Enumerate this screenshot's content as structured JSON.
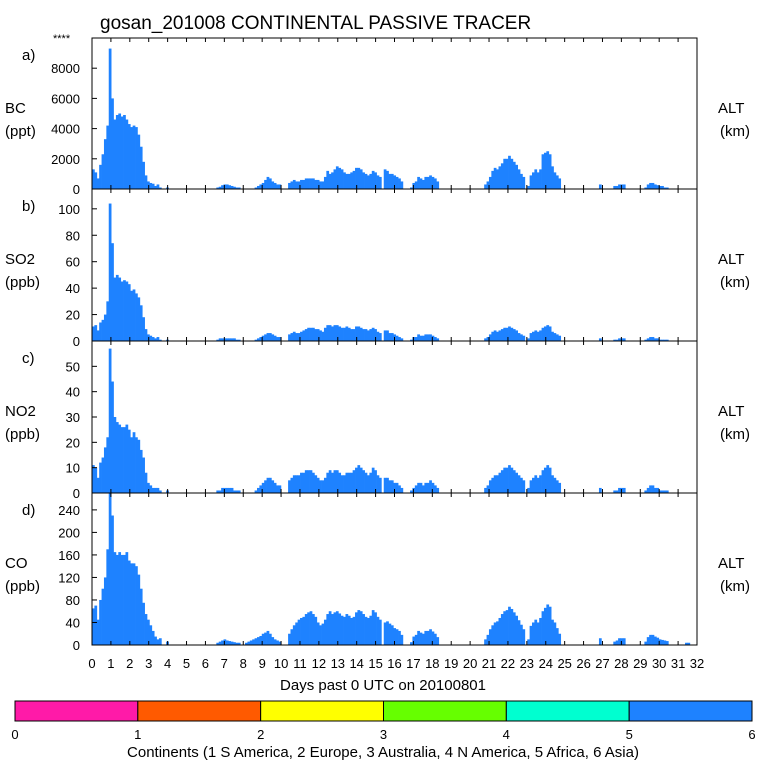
{
  "title": "gosan_201008 CONTINENTAL PASSIVE TRACER",
  "corner_mark": "****",
  "xlabel": "Days past 0 UTC on 20100801",
  "x_ticks": [
    "0",
    "1",
    "2",
    "3",
    "4",
    "5",
    "6",
    "7",
    "8",
    "9",
    "10",
    "11",
    "12",
    "13",
    "14",
    "15",
    "16",
    "17",
    "18",
    "19",
    "20",
    "21",
    "22",
    "23",
    "24",
    "25",
    "26",
    "27",
    "28",
    "29",
    "30",
    "31",
    "32"
  ],
  "colorbar": {
    "label": "Continents (1 S America, 2 Europe, 3 Australia, 4 N America, 5 Africa, 6 Asia)",
    "ticks": [
      "0",
      "1",
      "2",
      "3",
      "4",
      "5",
      "6"
    ],
    "colors": [
      "#ff1aa8",
      "#ff5a00",
      "#ffff00",
      "#66ff00",
      "#00ffd0",
      "#1e82ff"
    ]
  },
  "chart_data": [
    {
      "type": "bar",
      "panel": "a)",
      "species": "BC",
      "unit": "(ppt)",
      "right_label": "ALT",
      "right_unit": "(km)",
      "y_ticks": [
        "0",
        "2000",
        "4000",
        "6000",
        "8000"
      ],
      "ylim": [
        0,
        10000
      ],
      "bar_color": "#1e82ff",
      "x_range": [
        0,
        32
      ],
      "values": [
        1300,
        1100,
        700,
        1600,
        2300,
        3300,
        4200,
        9300,
        6000,
        4600,
        4900,
        5000,
        4800,
        4900,
        4600,
        4300,
        4100,
        4200,
        4100,
        3600,
        2800,
        1800,
        900,
        500,
        400,
        350,
        200,
        300,
        100,
        0,
        0,
        100,
        0,
        0,
        0,
        0,
        0,
        0,
        0,
        0,
        0,
        0,
        0,
        0,
        0,
        0,
        0,
        0,
        0,
        0,
        0,
        0,
        100,
        150,
        250,
        300,
        300,
        250,
        200,
        150,
        100,
        100,
        0,
        0,
        0,
        0,
        0,
        0,
        100,
        200,
        300,
        400,
        600,
        800,
        700,
        500,
        400,
        300,
        300,
        0,
        0,
        0,
        400,
        500,
        600,
        500,
        500,
        600,
        600,
        700,
        700,
        700,
        700,
        600,
        600,
        500,
        500,
        800,
        1200,
        1000,
        1100,
        1300,
        1500,
        1400,
        1300,
        1100,
        1000,
        1000,
        1100,
        1200,
        1400,
        1400,
        1300,
        1100,
        1000,
        900,
        1000,
        1200,
        1100,
        900,
        800,
        0,
        1300,
        1200,
        1000,
        1000,
        900,
        800,
        700,
        500,
        0,
        0,
        0,
        100,
        400,
        500,
        800,
        700,
        600,
        800,
        800,
        900,
        800,
        700,
        500,
        0,
        0,
        0,
        0,
        0,
        0,
        0,
        0,
        0,
        0,
        0,
        0,
        0,
        0,
        0,
        0,
        0,
        0,
        0,
        300,
        500,
        800,
        1200,
        1400,
        1300,
        1500,
        1700,
        2000,
        2000,
        2200,
        2000,
        1800,
        1600,
        1300,
        1000,
        800,
        0,
        200,
        900,
        1100,
        1300,
        1100,
        1300,
        2300,
        2400,
        2500,
        2300,
        1500,
        1100,
        900,
        700,
        0,
        0,
        0,
        0,
        0,
        0,
        0,
        0,
        0,
        0,
        0,
        0,
        0,
        0,
        0,
        0,
        300,
        0,
        0,
        0,
        0,
        0,
        200,
        200,
        300,
        300,
        300,
        0,
        0,
        0,
        0,
        0,
        0,
        0,
        0,
        100,
        300,
        400,
        400,
        300,
        250,
        200,
        200,
        100,
        100,
        0,
        0,
        0,
        0,
        0,
        0,
        0,
        0,
        0,
        0,
        0,
        0
      ]
    },
    {
      "type": "bar",
      "panel": "b)",
      "species": "SO2",
      "unit": "(ppb)",
      "right_label": "ALT",
      "right_unit": "(km)",
      "y_ticks": [
        "0",
        "20",
        "40",
        "60",
        "80",
        "100"
      ],
      "ylim": [
        0,
        115
      ],
      "bar_color": "#1e82ff",
      "x_range": [
        0,
        32
      ],
      "values": [
        11,
        12,
        8,
        14,
        16,
        20,
        30,
        104,
        74,
        48,
        50,
        48,
        45,
        46,
        45,
        43,
        38,
        39,
        36,
        33,
        27,
        18,
        9,
        5,
        4,
        3,
        2,
        3,
        1,
        0,
        0,
        1,
        0,
        0,
        0,
        0,
        0,
        0,
        0,
        0,
        0,
        0,
        0,
        0,
        0,
        0,
        0,
        0,
        0,
        0,
        0,
        0,
        1,
        2,
        2,
        2,
        2,
        2,
        2,
        2,
        1,
        1,
        0,
        0,
        0,
        0,
        0,
        0,
        1,
        2,
        3,
        4,
        5,
        6,
        6,
        5,
        4,
        3,
        3,
        0,
        0,
        0,
        5,
        6,
        7,
        6,
        6,
        7,
        8,
        9,
        10,
        10,
        10,
        9,
        9,
        8,
        7,
        10,
        12,
        12,
        11,
        12,
        12,
        11,
        10,
        10,
        11,
        10,
        9,
        9,
        11,
        11,
        10,
        9,
        9,
        8,
        9,
        10,
        9,
        7,
        6,
        0,
        8,
        8,
        6,
        6,
        5,
        4,
        3,
        2,
        0,
        0,
        0,
        1,
        3,
        3,
        5,
        4,
        4,
        5,
        5,
        5,
        4,
        3,
        2,
        0,
        0,
        0,
        0,
        0,
        0,
        0,
        0,
        0,
        0,
        0,
        0,
        0,
        0,
        0,
        0,
        0,
        0,
        0,
        2,
        3,
        5,
        7,
        8,
        7,
        8,
        9,
        10,
        10,
        11,
        10,
        9,
        8,
        6,
        5,
        4,
        0,
        2,
        6,
        7,
        8,
        7,
        8,
        10,
        11,
        12,
        11,
        7,
        6,
        5,
        4,
        0,
        0,
        0,
        0,
        0,
        0,
        0,
        0,
        0,
        0,
        0,
        0,
        0,
        0,
        0,
        0,
        2,
        0,
        0,
        0,
        0,
        0,
        1,
        1,
        2,
        2,
        2,
        0,
        0,
        0,
        0,
        0,
        0,
        0,
        0,
        1,
        2,
        3,
        3,
        2,
        2,
        1,
        1,
        1,
        1,
        0,
        0,
        0,
        0,
        0,
        0,
        0,
        0,
        0,
        0,
        0,
        0
      ]
    },
    {
      "type": "bar",
      "panel": "c)",
      "species": "NO2",
      "unit": "(ppb)",
      "right_label": "ALT",
      "right_unit": "(km)",
      "y_ticks": [
        "0",
        "10",
        "20",
        "30",
        "40",
        "50"
      ],
      "ylim": [
        0,
        60
      ],
      "bar_color": "#1e82ff",
      "x_range": [
        0,
        32
      ],
      "values": [
        11,
        10,
        6,
        12,
        14,
        18,
        22,
        57,
        44,
        30,
        28,
        27,
        26,
        26,
        27,
        25,
        22,
        24,
        22,
        21,
        17,
        14,
        8,
        4,
        3,
        2,
        2,
        2,
        1,
        0,
        0,
        1,
        0,
        0,
        0,
        0,
        0,
        0,
        0,
        0,
        0,
        0,
        0,
        0,
        0,
        0,
        0,
        0,
        0,
        0,
        0,
        0,
        1,
        1,
        2,
        2,
        2,
        2,
        2,
        1,
        1,
        1,
        0,
        0,
        0,
        0,
        0,
        0,
        1,
        2,
        3,
        4,
        5,
        6,
        6,
        5,
        4,
        3,
        3,
        0,
        0,
        0,
        5,
        6,
        7,
        7,
        7,
        8,
        8,
        9,
        9,
        9,
        8,
        7,
        6,
        5,
        5,
        6,
        8,
        9,
        8,
        9,
        9,
        8,
        7,
        7,
        8,
        8,
        8,
        9,
        10,
        11,
        10,
        9,
        8,
        7,
        8,
        10,
        9,
        7,
        6,
        0,
        6,
        6,
        5,
        5,
        4,
        4,
        3,
        2,
        0,
        0,
        0,
        1,
        2,
        3,
        4,
        4,
        3,
        4,
        4,
        5,
        4,
        3,
        2,
        0,
        0,
        0,
        0,
        0,
        0,
        0,
        0,
        0,
        0,
        0,
        0,
        0,
        0,
        0,
        0,
        0,
        0,
        0,
        2,
        3,
        5,
        6,
        7,
        7,
        8,
        9,
        10,
        10,
        11,
        10,
        9,
        8,
        7,
        6,
        5,
        0,
        2,
        5,
        6,
        7,
        6,
        7,
        9,
        10,
        11,
        10,
        7,
        6,
        5,
        4,
        0,
        0,
        0,
        0,
        0,
        0,
        0,
        0,
        0,
        0,
        0,
        0,
        0,
        0,
        0,
        0,
        2,
        0,
        0,
        0,
        0,
        0,
        1,
        1,
        2,
        2,
        2,
        0,
        0,
        0,
        0,
        0,
        0,
        0,
        0,
        1,
        2,
        3,
        3,
        2,
        2,
        1,
        1,
        1,
        1,
        0,
        0,
        0,
        0,
        0,
        0,
        0,
        0,
        0,
        0,
        0,
        0
      ]
    },
    {
      "type": "bar",
      "panel": "d)",
      "species": "CO",
      "unit": "(ppb)",
      "right_label": "ALT",
      "right_unit": "(km)",
      "y_ticks": [
        "0",
        "40",
        "80",
        "120",
        "160",
        "200",
        "240"
      ],
      "ylim": [
        0,
        270
      ],
      "bar_color": "#1e82ff",
      "x_range": [
        0,
        32
      ],
      "values": [
        65,
        70,
        45,
        80,
        100,
        120,
        170,
        270,
        230,
        165,
        160,
        165,
        160,
        160,
        165,
        150,
        145,
        145,
        140,
        125,
        100,
        75,
        55,
        45,
        35,
        25,
        15,
        10,
        12,
        0,
        0,
        6,
        0,
        0,
        0,
        0,
        0,
        0,
        0,
        0,
        0,
        0,
        0,
        0,
        0,
        0,
        0,
        0,
        0,
        0,
        0,
        0,
        4,
        6,
        8,
        10,
        8,
        7,
        6,
        5,
        4,
        4,
        0,
        0,
        4,
        6,
        8,
        10,
        12,
        14,
        16,
        20,
        22,
        25,
        20,
        14,
        10,
        8,
        6,
        0,
        0,
        0,
        20,
        28,
        35,
        40,
        45,
        48,
        50,
        55,
        58,
        60,
        55,
        50,
        40,
        35,
        38,
        45,
        55,
        60,
        55,
        58,
        60,
        56,
        52,
        50,
        55,
        52,
        48,
        50,
        58,
        62,
        60,
        55,
        50,
        48,
        52,
        62,
        58,
        50,
        45,
        0,
        40,
        42,
        38,
        35,
        30,
        28,
        25,
        18,
        0,
        0,
        0,
        5,
        15,
        18,
        25,
        22,
        20,
        25,
        25,
        28,
        24,
        20,
        14,
        0,
        0,
        0,
        0,
        0,
        0,
        0,
        0,
        0,
        0,
        0,
        0,
        0,
        0,
        0,
        0,
        0,
        0,
        0,
        10,
        18,
        28,
        35,
        40,
        42,
        48,
        55,
        60,
        62,
        68,
        64,
        58,
        52,
        44,
        36,
        28,
        0,
        10,
        34,
        40,
        45,
        40,
        48,
        60,
        66,
        72,
        68,
        45,
        40,
        30,
        20,
        0,
        0,
        0,
        0,
        0,
        0,
        0,
        0,
        0,
        0,
        0,
        0,
        0,
        0,
        0,
        0,
        12,
        0,
        0,
        0,
        0,
        0,
        6,
        8,
        12,
        12,
        12,
        0,
        0,
        0,
        0,
        0,
        0,
        0,
        0,
        6,
        14,
        18,
        18,
        15,
        13,
        10,
        9,
        8,
        7,
        0,
        0,
        0,
        0,
        0,
        0,
        0,
        4,
        4,
        0,
        0,
        0
      ]
    }
  ]
}
